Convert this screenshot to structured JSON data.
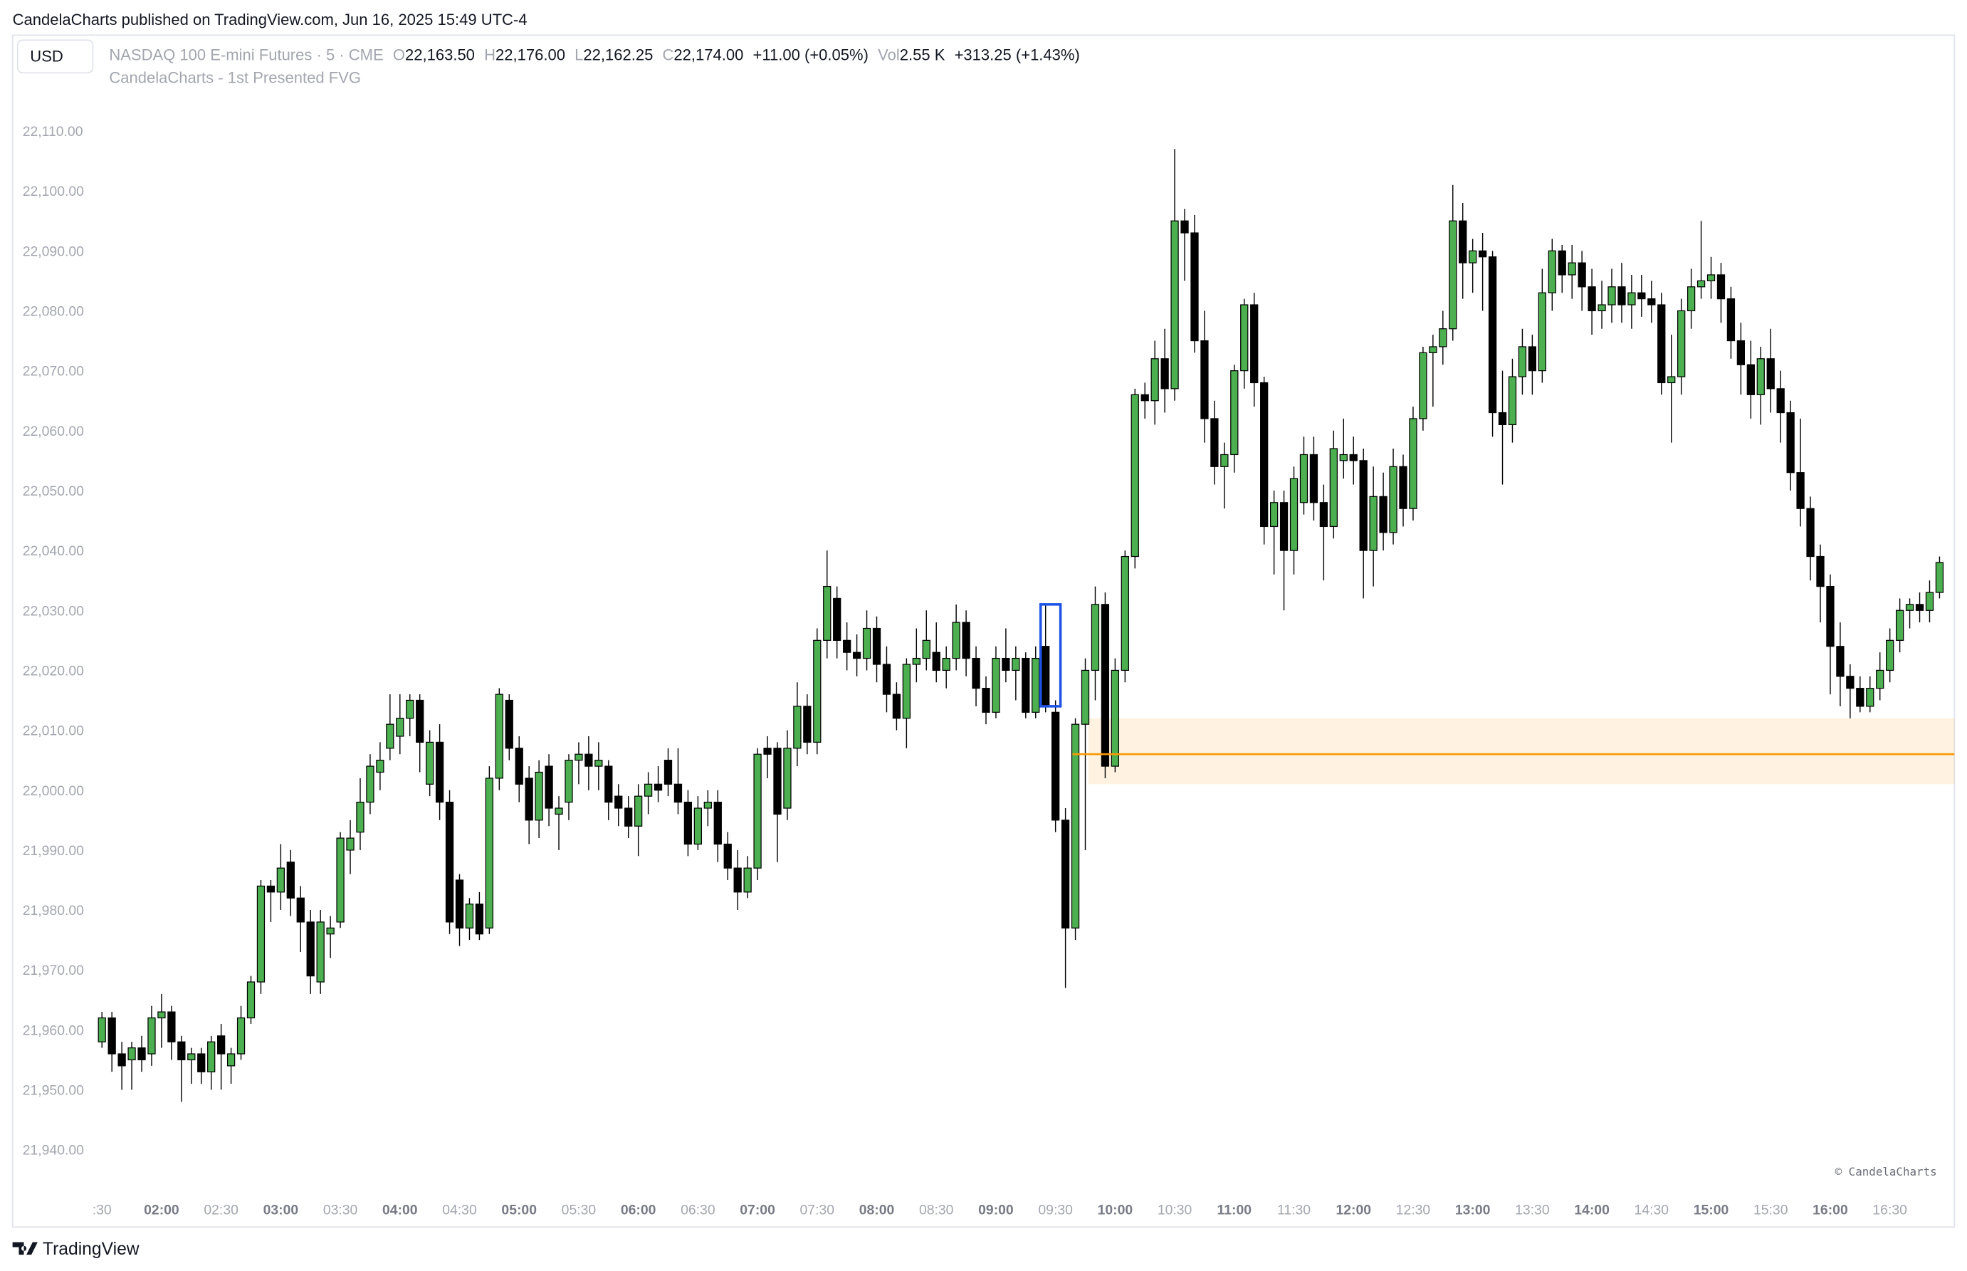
{
  "header": {
    "published": "CandelaCharts published on TradingView.com, Jun 16, 2025 15:49 UTC-4",
    "currency": "USD",
    "symbol": "NASDAQ 100 E-mini Futures · 5 · CME",
    "ohlc": [
      {
        "label": "O",
        "value": "22,163.50"
      },
      {
        "label": "H",
        "value": "22,176.00"
      },
      {
        "label": "L",
        "value": "22,162.25"
      },
      {
        "label": "C",
        "value": "22,174.00"
      }
    ],
    "change": "+11.00 (+0.05%)",
    "vol_label": "Vol",
    "vol": "2.55 K",
    "day_change": "+313.25 (+1.43%)",
    "indicator": "CandelaCharts - 1st Presented FVG"
  },
  "chart_data": {
    "type": "candlestick",
    "up_color": "#4caf50",
    "down_color": "#000000",
    "candles": [
      [
        21958,
        21963,
        21957,
        21962
      ],
      [
        21962,
        21963,
        21953,
        21956
      ],
      [
        21956,
        21958,
        21950,
        21954
      ],
      [
        21955,
        21958,
        21950,
        21957
      ],
      [
        21957,
        21959,
        21953,
        21955
      ],
      [
        21956,
        21964,
        21954,
        21962
      ],
      [
        21962,
        21966,
        21957,
        21963
      ],
      [
        21963,
        21964,
        21955,
        21958
      ],
      [
        21958,
        21959,
        21948,
        21955
      ],
      [
        21955,
        21957,
        21951,
        21956
      ],
      [
        21956,
        21957,
        21951,
        21953
      ],
      [
        21953,
        21959,
        21950,
        21958
      ],
      [
        21959,
        21961,
        21950,
        21956
      ],
      [
        21954,
        21957,
        21951,
        21956
      ],
      [
        21956,
        21964,
        21955,
        21962
      ],
      [
        21962,
        21969,
        21961,
        21968
      ],
      [
        21968,
        21985,
        21966,
        21984
      ],
      [
        21984,
        21985,
        21978,
        21983
      ],
      [
        21983,
        21991,
        21980,
        21987
      ],
      [
        21988,
        21990,
        21979,
        21982
      ],
      [
        21982,
        21984,
        21973,
        21978
      ],
      [
        21978,
        21980,
        21966,
        21969
      ],
      [
        21968,
        21980,
        21966,
        21978
      ],
      [
        21976,
        21979,
        21972,
        21977
      ],
      [
        21978,
        21993,
        21977,
        21992
      ],
      [
        21990,
        21995,
        21986,
        21992
      ],
      [
        21993,
        22002,
        21990,
        21998
      ],
      [
        21998,
        22006,
        21996,
        22004
      ],
      [
        22003,
        22008,
        22000,
        22005
      ],
      [
        22007,
        22016,
        22005,
        22011
      ],
      [
        22009,
        22016,
        22006,
        22012
      ],
      [
        22012,
        22016,
        22009,
        22015
      ],
      [
        22015,
        22016,
        22003,
        22008
      ],
      [
        22001,
        22010,
        21999,
        22008
      ],
      [
        22008,
        22011,
        21995,
        21998
      ],
      [
        21998,
        22000,
        21976,
        21978
      ],
      [
        21985,
        21986,
        21974,
        21977
      ],
      [
        21977,
        21982,
        21975,
        21981
      ],
      [
        21981,
        21983,
        21975,
        21976
      ],
      [
        21977,
        22004,
        21976,
        22002
      ],
      [
        22002,
        22017,
        22000,
        22016
      ],
      [
        22015,
        22016,
        22005,
        22007
      ],
      [
        22007,
        22009,
        21998,
        22001
      ],
      [
        22002,
        22004,
        21991,
        21995
      ],
      [
        21995,
        22005,
        21992,
        22003
      ],
      [
        22004,
        22006,
        21994,
        21997
      ],
      [
        21996,
        21999,
        21990,
        21997
      ],
      [
        21998,
        22006,
        21995,
        22005
      ],
      [
        22005,
        22008,
        22001,
        22006
      ],
      [
        22006,
        22009,
        22000,
        22004
      ],
      [
        22004,
        22008,
        22000,
        22005
      ],
      [
        22004,
        22005,
        21995,
        21998
      ],
      [
        21999,
        22001,
        21994,
        21997
      ],
      [
        21997,
        21999,
        21992,
        21994
      ],
      [
        21994,
        22001,
        21989,
        21999
      ],
      [
        21999,
        22003,
        21996,
        22001
      ],
      [
        22001,
        22004,
        21998,
        22000
      ],
      [
        22005,
        22007,
        21999,
        22001
      ],
      [
        22001,
        22007,
        21996,
        21998
      ],
      [
        21998,
        22000,
        21989,
        21991
      ],
      [
        21991,
        21999,
        21990,
        21997
      ],
      [
        21997,
        22000,
        21994,
        21998
      ],
      [
        21998,
        22000,
        21988,
        21991
      ],
      [
        21991,
        21993,
        21985,
        21987
      ],
      [
        21987,
        21990,
        21980,
        21983
      ],
      [
        21983,
        21989,
        21982,
        21987
      ],
      [
        21987,
        22007,
        21985,
        22006
      ],
      [
        22007,
        22009,
        22002,
        22006
      ],
      [
        22007,
        22008,
        21988,
        21996
      ],
      [
        21997,
        22010,
        21995,
        22007
      ],
      [
        22007,
        22018,
        22004,
        22014
      ],
      [
        22014,
        22016,
        22006,
        22008
      ],
      [
        22008,
        22027,
        22006,
        22025
      ],
      [
        22025,
        22040,
        22022,
        22034
      ],
      [
        22032,
        22034,
        22022,
        22025
      ],
      [
        22025,
        22028,
        22020,
        22023
      ],
      [
        22023,
        22026,
        22019,
        22022
      ],
      [
        22022,
        22030,
        22020,
        22027
      ],
      [
        22027,
        22029,
        22018,
        22021
      ],
      [
        22021,
        22024,
        22013,
        22016
      ],
      [
        22016,
        22018,
        22010,
        22012
      ],
      [
        22012,
        22022,
        22007,
        22021
      ],
      [
        22021,
        22027,
        22018,
        22022
      ],
      [
        22022,
        22030,
        22020,
        22025
      ],
      [
        22023,
        22028,
        22018,
        22020
      ],
      [
        22020,
        22024,
        22017,
        22022
      ],
      [
        22022,
        22031,
        22020,
        22028
      ],
      [
        22028,
        22030,
        22019,
        22022
      ],
      [
        22022,
        22024,
        22014,
        22017
      ],
      [
        22017,
        22019,
        22011,
        22013
      ],
      [
        22013,
        22024,
        22012,
        22022
      ],
      [
        22022,
        22027,
        22018,
        22020
      ],
      [
        22020,
        22024,
        22015,
        22022
      ],
      [
        22022,
        22023,
        22012,
        22013
      ],
      [
        22013,
        22024,
        22012,
        22022
      ],
      [
        22024,
        22031,
        22013,
        22014
      ],
      [
        22013,
        22015,
        21993,
        21995
      ],
      [
        21995,
        21997,
        21967,
        21977
      ],
      [
        21977,
        22012,
        21975,
        22011
      ],
      [
        22011,
        22022,
        21990,
        22020
      ],
      [
        22020,
        22034,
        22015,
        22031
      ],
      [
        22031,
        22033,
        22002,
        22004
      ],
      [
        22004,
        22022,
        22003,
        22020
      ],
      [
        22020,
        22040,
        22018,
        22039
      ],
      [
        22039,
        22067,
        22037,
        22066
      ],
      [
        22066,
        22068,
        22062,
        22065
      ],
      [
        22065,
        22075,
        22061,
        22072
      ],
      [
        22072,
        22077,
        22063,
        22067
      ],
      [
        22067,
        22107,
        22065,
        22095
      ],
      [
        22095,
        22097,
        22085,
        22093
      ],
      [
        22093,
        22096,
        22073,
        22075
      ],
      [
        22075,
        22080,
        22058,
        22062
      ],
      [
        22062,
        22065,
        22051,
        22054
      ],
      [
        22054,
        22058,
        22047,
        22056
      ],
      [
        22056,
        22071,
        22053,
        22070
      ],
      [
        22070,
        22082,
        22067,
        22081
      ],
      [
        22081,
        22083,
        22064,
        22068
      ],
      [
        22068,
        22069,
        22041,
        22044
      ],
      [
        22044,
        22050,
        22036,
        22048
      ],
      [
        22048,
        22050,
        22030,
        22040
      ],
      [
        22040,
        22054,
        22036,
        22052
      ],
      [
        22048,
        22059,
        22046,
        22056
      ],
      [
        22056,
        22059,
        22045,
        22048
      ],
      [
        22048,
        22051,
        22035,
        22044
      ],
      [
        22044,
        22060,
        22042,
        22057
      ],
      [
        22055,
        22062,
        22052,
        22056
      ],
      [
        22056,
        22059,
        22051,
        22055
      ],
      [
        22055,
        22057,
        22032,
        22040
      ],
      [
        22040,
        22054,
        22034,
        22049
      ],
      [
        22049,
        22053,
        22040,
        22043
      ],
      [
        22043,
        22057,
        22041,
        22054
      ],
      [
        22054,
        22056,
        22044,
        22047
      ],
      [
        22047,
        22064,
        22045,
        22062
      ],
      [
        22062,
        22074,
        22060,
        22073
      ],
      [
        22073,
        22076,
        22064,
        22074
      ],
      [
        22074,
        22080,
        22071,
        22077
      ],
      [
        22077,
        22101,
        22075,
        22095
      ],
      [
        22095,
        22098,
        22082,
        22088
      ],
      [
        22088,
        22092,
        22083,
        22090
      ],
      [
        22090,
        22093,
        22080,
        22089
      ],
      [
        22089,
        22090,
        22059,
        22063
      ],
      [
        22063,
        22070,
        22051,
        22061
      ],
      [
        22061,
        22072,
        22058,
        22069
      ],
      [
        22069,
        22077,
        22066,
        22074
      ],
      [
        22074,
        22076,
        22066,
        22070
      ],
      [
        22070,
        22087,
        22068,
        22083
      ],
      [
        22083,
        22092,
        22080,
        22090
      ],
      [
        22090,
        22091,
        22083,
        22086
      ],
      [
        22086,
        22091,
        22082,
        22088
      ],
      [
        22088,
        22090,
        22080,
        22084
      ],
      [
        22084,
        22087,
        22076,
        22080
      ],
      [
        22080,
        22085,
        22077,
        22081
      ],
      [
        22081,
        22087,
        22078,
        22084
      ],
      [
        22084,
        22088,
        22078,
        22081
      ],
      [
        22081,
        22086,
        22077,
        22083
      ],
      [
        22083,
        22086,
        22079,
        22082
      ],
      [
        22082,
        22085,
        22078,
        22081
      ],
      [
        22081,
        22083,
        22066,
        22068
      ],
      [
        22068,
        22076,
        22058,
        22069
      ],
      [
        22069,
        22082,
        22066,
        22080
      ],
      [
        22080,
        22087,
        22077,
        22084
      ],
      [
        22084,
        22095,
        22082,
        22085
      ],
      [
        22085,
        22089,
        22082,
        22086
      ],
      [
        22086,
        22088,
        22078,
        22082
      ],
      [
        22082,
        22084,
        22072,
        22075
      ],
      [
        22075,
        22078,
        22066,
        22071
      ],
      [
        22071,
        22075,
        22062,
        22066
      ],
      [
        22066,
        22074,
        22061,
        22072
      ],
      [
        22072,
        22077,
        22063,
        22067
      ],
      [
        22067,
        22070,
        22058,
        22063
      ],
      [
        22063,
        22065,
        22050,
        22053
      ],
      [
        22053,
        22062,
        22044,
        22047
      ],
      [
        22047,
        22049,
        22035,
        22039
      ],
      [
        22039,
        22041,
        22028,
        22034
      ],
      [
        22034,
        22036,
        22016,
        22024
      ],
      [
        22024,
        22028,
        22014,
        22019
      ],
      [
        22019,
        22021,
        22012,
        22017
      ],
      [
        22017,
        22019,
        22013,
        22014
      ],
      [
        22014,
        22019,
        22013,
        22017
      ],
      [
        22017,
        22023,
        22015,
        22020
      ],
      [
        22020,
        22027,
        22018,
        22025
      ],
      [
        22025,
        22032,
        22023,
        22030
      ],
      [
        22030,
        22032,
        22027,
        22031
      ],
      [
        22031,
        22033,
        22028,
        22030
      ],
      [
        22030,
        22035,
        22028,
        22033
      ],
      [
        22033,
        22039,
        22032,
        22038
      ]
    ],
    "xlim": [
      -9,
      186.5
    ],
    "ylim": [
      21934,
      22126
    ],
    "yticks": [
      {
        "value": 21940,
        "label": "21,940.00"
      },
      {
        "value": 21950,
        "label": "21,950.00"
      },
      {
        "value": 21960,
        "label": "21,960.00"
      },
      {
        "value": 21970,
        "label": "21,970.00"
      },
      {
        "value": 21980,
        "label": "21,980.00"
      },
      {
        "value": 21990,
        "label": "21,990.00"
      },
      {
        "value": 22000,
        "label": "22,000.00"
      },
      {
        "value": 22010,
        "label": "22,010.00"
      },
      {
        "value": 22020,
        "label": "22,020.00"
      },
      {
        "value": 22030,
        "label": "22,030.00"
      },
      {
        "value": 22040,
        "label": "22,040.00"
      },
      {
        "value": 22050,
        "label": "22,050.00"
      },
      {
        "value": 22060,
        "label": "22,060.00"
      },
      {
        "value": 22070,
        "label": "22,070.00"
      },
      {
        "value": 22080,
        "label": "22,080.00"
      },
      {
        "value": 22090,
        "label": "22,090.00"
      },
      {
        "value": 22100,
        "label": "22,100.00"
      },
      {
        "value": 22110,
        "label": "22,110.00"
      }
    ],
    "xticks": [
      {
        "value": 0,
        "label": ":30"
      },
      {
        "value": 6,
        "label": "02:00",
        "bold": true
      },
      {
        "value": 12,
        "label": "02:30"
      },
      {
        "value": 18,
        "label": "03:00",
        "bold": true
      },
      {
        "value": 24,
        "label": "03:30"
      },
      {
        "value": 30,
        "label": "04:00",
        "bold": true
      },
      {
        "value": 36,
        "label": "04:30"
      },
      {
        "value": 42,
        "label": "05:00",
        "bold": true
      },
      {
        "value": 48,
        "label": "05:30"
      },
      {
        "value": 54,
        "label": "06:00",
        "bold": true
      },
      {
        "value": 60,
        "label": "06:30"
      },
      {
        "value": 66,
        "label": "07:00",
        "bold": true
      },
      {
        "value": 72,
        "label": "07:30"
      },
      {
        "value": 78,
        "label": "08:00",
        "bold": true
      },
      {
        "value": 84,
        "label": "08:30"
      },
      {
        "value": 90,
        "label": "09:00",
        "bold": true
      },
      {
        "value": 96,
        "label": "09:30"
      },
      {
        "value": 102,
        "label": "10:00",
        "bold": true
      },
      {
        "value": 108,
        "label": "10:30"
      },
      {
        "value": 114,
        "label": "11:00",
        "bold": true
      },
      {
        "value": 120,
        "label": "11:30"
      },
      {
        "value": 126,
        "label": "12:00",
        "bold": true
      },
      {
        "value": 132,
        "label": "12:30"
      },
      {
        "value": 138,
        "label": "13:00",
        "bold": true
      },
      {
        "value": 144,
        "label": "13:30"
      },
      {
        "value": 150,
        "label": "14:00",
        "bold": true
      },
      {
        "value": 156,
        "label": "14:30"
      },
      {
        "value": 162,
        "label": "15:00",
        "bold": true
      },
      {
        "value": 168,
        "label": "15:30"
      },
      {
        "value": 174,
        "label": "16:00",
        "bold": true
      },
      {
        "value": 180,
        "label": "16:30"
      }
    ],
    "fvg_zone": {
      "top": 22012,
      "bottom": 22001,
      "mid": 22006,
      "zone_start": 99.3,
      "line_start": 97.7,
      "color": "#ff9800"
    },
    "fvg_box": {
      "index": 95,
      "low": 22014,
      "high": 22031,
      "color": "#1e53e5"
    },
    "watermark": "© CandelaCharts"
  },
  "footer": {
    "brand": "TradingView"
  }
}
